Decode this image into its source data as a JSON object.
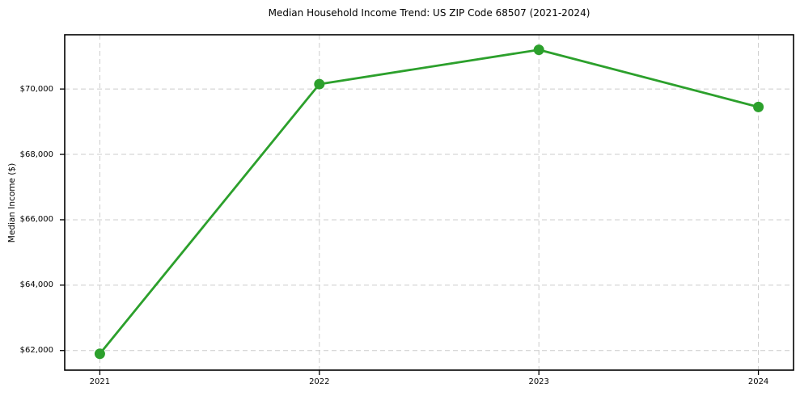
{
  "chart_data": {
    "type": "line",
    "title": "Median Household Income Trend: US ZIP Code 68507 (2021-2024)",
    "xlabel": "",
    "ylabel": "Median Income ($)",
    "categories": [
      "2021",
      "2022",
      "2023",
      "2024"
    ],
    "x": [
      2021,
      2022,
      2023,
      2024
    ],
    "values": [
      61900,
      70150,
      71200,
      69450
    ],
    "series": [
      {
        "name": "Median Household Income",
        "values": [
          61900,
          70150,
          71200,
          69450
        ]
      }
    ],
    "yticks": [
      62000,
      64000,
      66000,
      68000,
      70000
    ],
    "ytick_labels": [
      "$62,000",
      "$64,000",
      "$66,000",
      "$68,000",
      "$70,000"
    ],
    "xtick_labels": [
      "2021",
      "2022",
      "2023",
      "2024"
    ],
    "xlim": [
      2020.84,
      2024.16
    ],
    "ylim": [
      61400,
      71660
    ],
    "grid": true,
    "grid_style": "dashed",
    "legend_position": "none",
    "line_color": "#2ca02c",
    "grid_color": "#cccccc",
    "spine_color": "#000000",
    "background_color": "#ffffff",
    "marker": "circle",
    "marker_diameter": 13,
    "line_width": 2.8
  }
}
